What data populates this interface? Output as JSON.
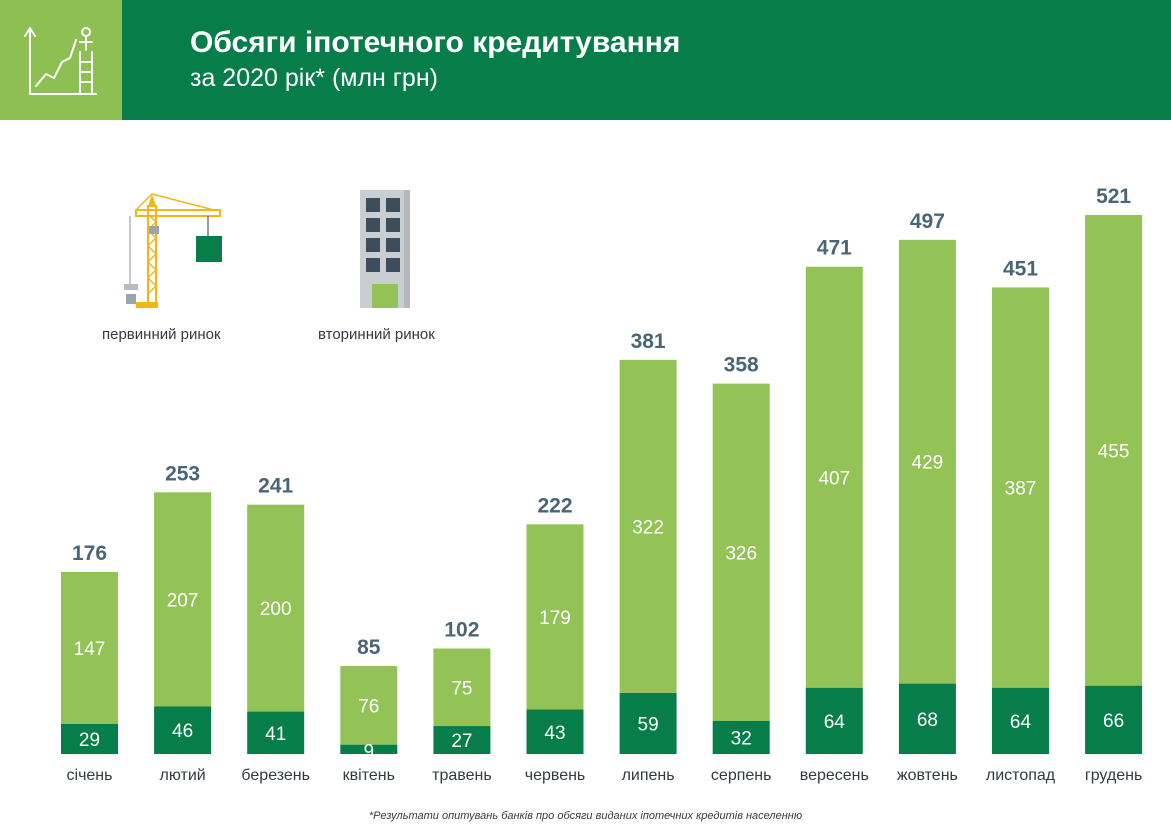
{
  "header": {
    "title": "Обсяги іпотечного кредитування",
    "subtitle": "за 2020 рік* (млн грн)",
    "icon": "growth-chart-ladder-icon"
  },
  "legend": [
    {
      "label": "первинний ринок",
      "icon": "construction-crane-icon",
      "color": "#077d4a"
    },
    {
      "label": "вторинний ринок",
      "icon": "apartment-building-icon",
      "color": "#93c356"
    }
  ],
  "colors": {
    "primary": "#077d4a",
    "secondary": "#93c356",
    "total_label": "#4a6578",
    "header_bg": "#077d4a",
    "icon_bg": "#8dbf53"
  },
  "chart_data": {
    "type": "bar",
    "stacked": true,
    "title": "Обсяги іпотечного кредитування",
    "subtitle": "за 2020 рік* (млн грн)",
    "categories": [
      "січень",
      "лютий",
      "березень",
      "квітень",
      "травень",
      "червень",
      "липень",
      "серпень",
      "вересень",
      "жовтень",
      "листопад",
      "грудень"
    ],
    "series": [
      {
        "name": "первинний ринок",
        "values": [
          29,
          46,
          41,
          9,
          27,
          43,
          59,
          32,
          64,
          68,
          64,
          66
        ]
      },
      {
        "name": "вторинний ринок",
        "values": [
          147,
          207,
          200,
          76,
          75,
          179,
          322,
          326,
          407,
          429,
          387,
          455
        ]
      }
    ],
    "totals": [
      176,
      253,
      241,
      85,
      102,
      222,
      381,
      358,
      471,
      497,
      451,
      521
    ],
    "ylim": [
      0,
      521
    ],
    "grid": false,
    "legend_position": "top-left"
  },
  "footnote": "*Результати опитувань банків про обсяги виданих іпотечних кредитів населенню"
}
